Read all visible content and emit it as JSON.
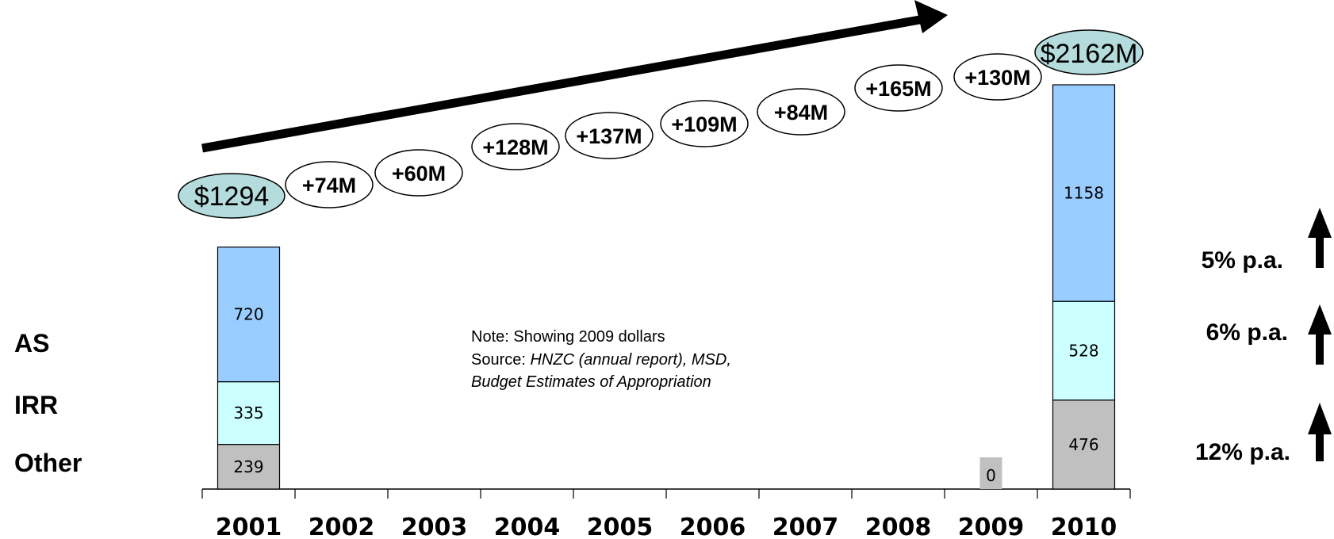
{
  "chart_data": {
    "type": "bar",
    "stacked": true,
    "categories": [
      "2001",
      "2002",
      "2003",
      "2004",
      "2005",
      "2006",
      "2007",
      "2008",
      "2009",
      "2010"
    ],
    "series": [
      {
        "name": "Other",
        "color": "#c0c0c0",
        "values": [
          239,
          null,
          null,
          null,
          null,
          null,
          null,
          null,
          0,
          476
        ]
      },
      {
        "name": "IRR",
        "color": "#ccffff",
        "values": [
          335,
          null,
          null,
          null,
          null,
          null,
          null,
          null,
          null,
          528
        ]
      },
      {
        "name": "AS",
        "color": "#99ccff",
        "values": [
          720,
          null,
          null,
          null,
          null,
          null,
          null,
          null,
          null,
          1158
        ]
      }
    ],
    "segment_labels": {
      "2001": [
        "239",
        "335",
        "720"
      ],
      "2009": [
        "0"
      ],
      "2010": [
        "476",
        "528",
        "1158"
      ]
    },
    "totals": {
      "start": "$1294",
      "end": "$2162M"
    },
    "increments": [
      "+74M",
      "+60M",
      "+128M",
      "+137M",
      "+109M",
      "+84M",
      "+165M",
      "+130M"
    ],
    "category_labels": [
      "AS",
      "IRR",
      "Other"
    ],
    "growth_labels": [
      "5% p.a.",
      "6% p.a.",
      "12% p.a."
    ],
    "trend_arrow": true,
    "ylim": [
      0,
      2162
    ]
  },
  "note": {
    "line1": "Note: Showing 2009 dollars",
    "line2_prefix": "Source: ",
    "line2_italic": "HNZC (annual report), MSD,",
    "line3_italic": "Budget Estimates of Appropriation"
  },
  "colors": {
    "bubble_fill": "#ffffff",
    "total_fill": "#b4dcdc",
    "arrow": "#000000"
  }
}
